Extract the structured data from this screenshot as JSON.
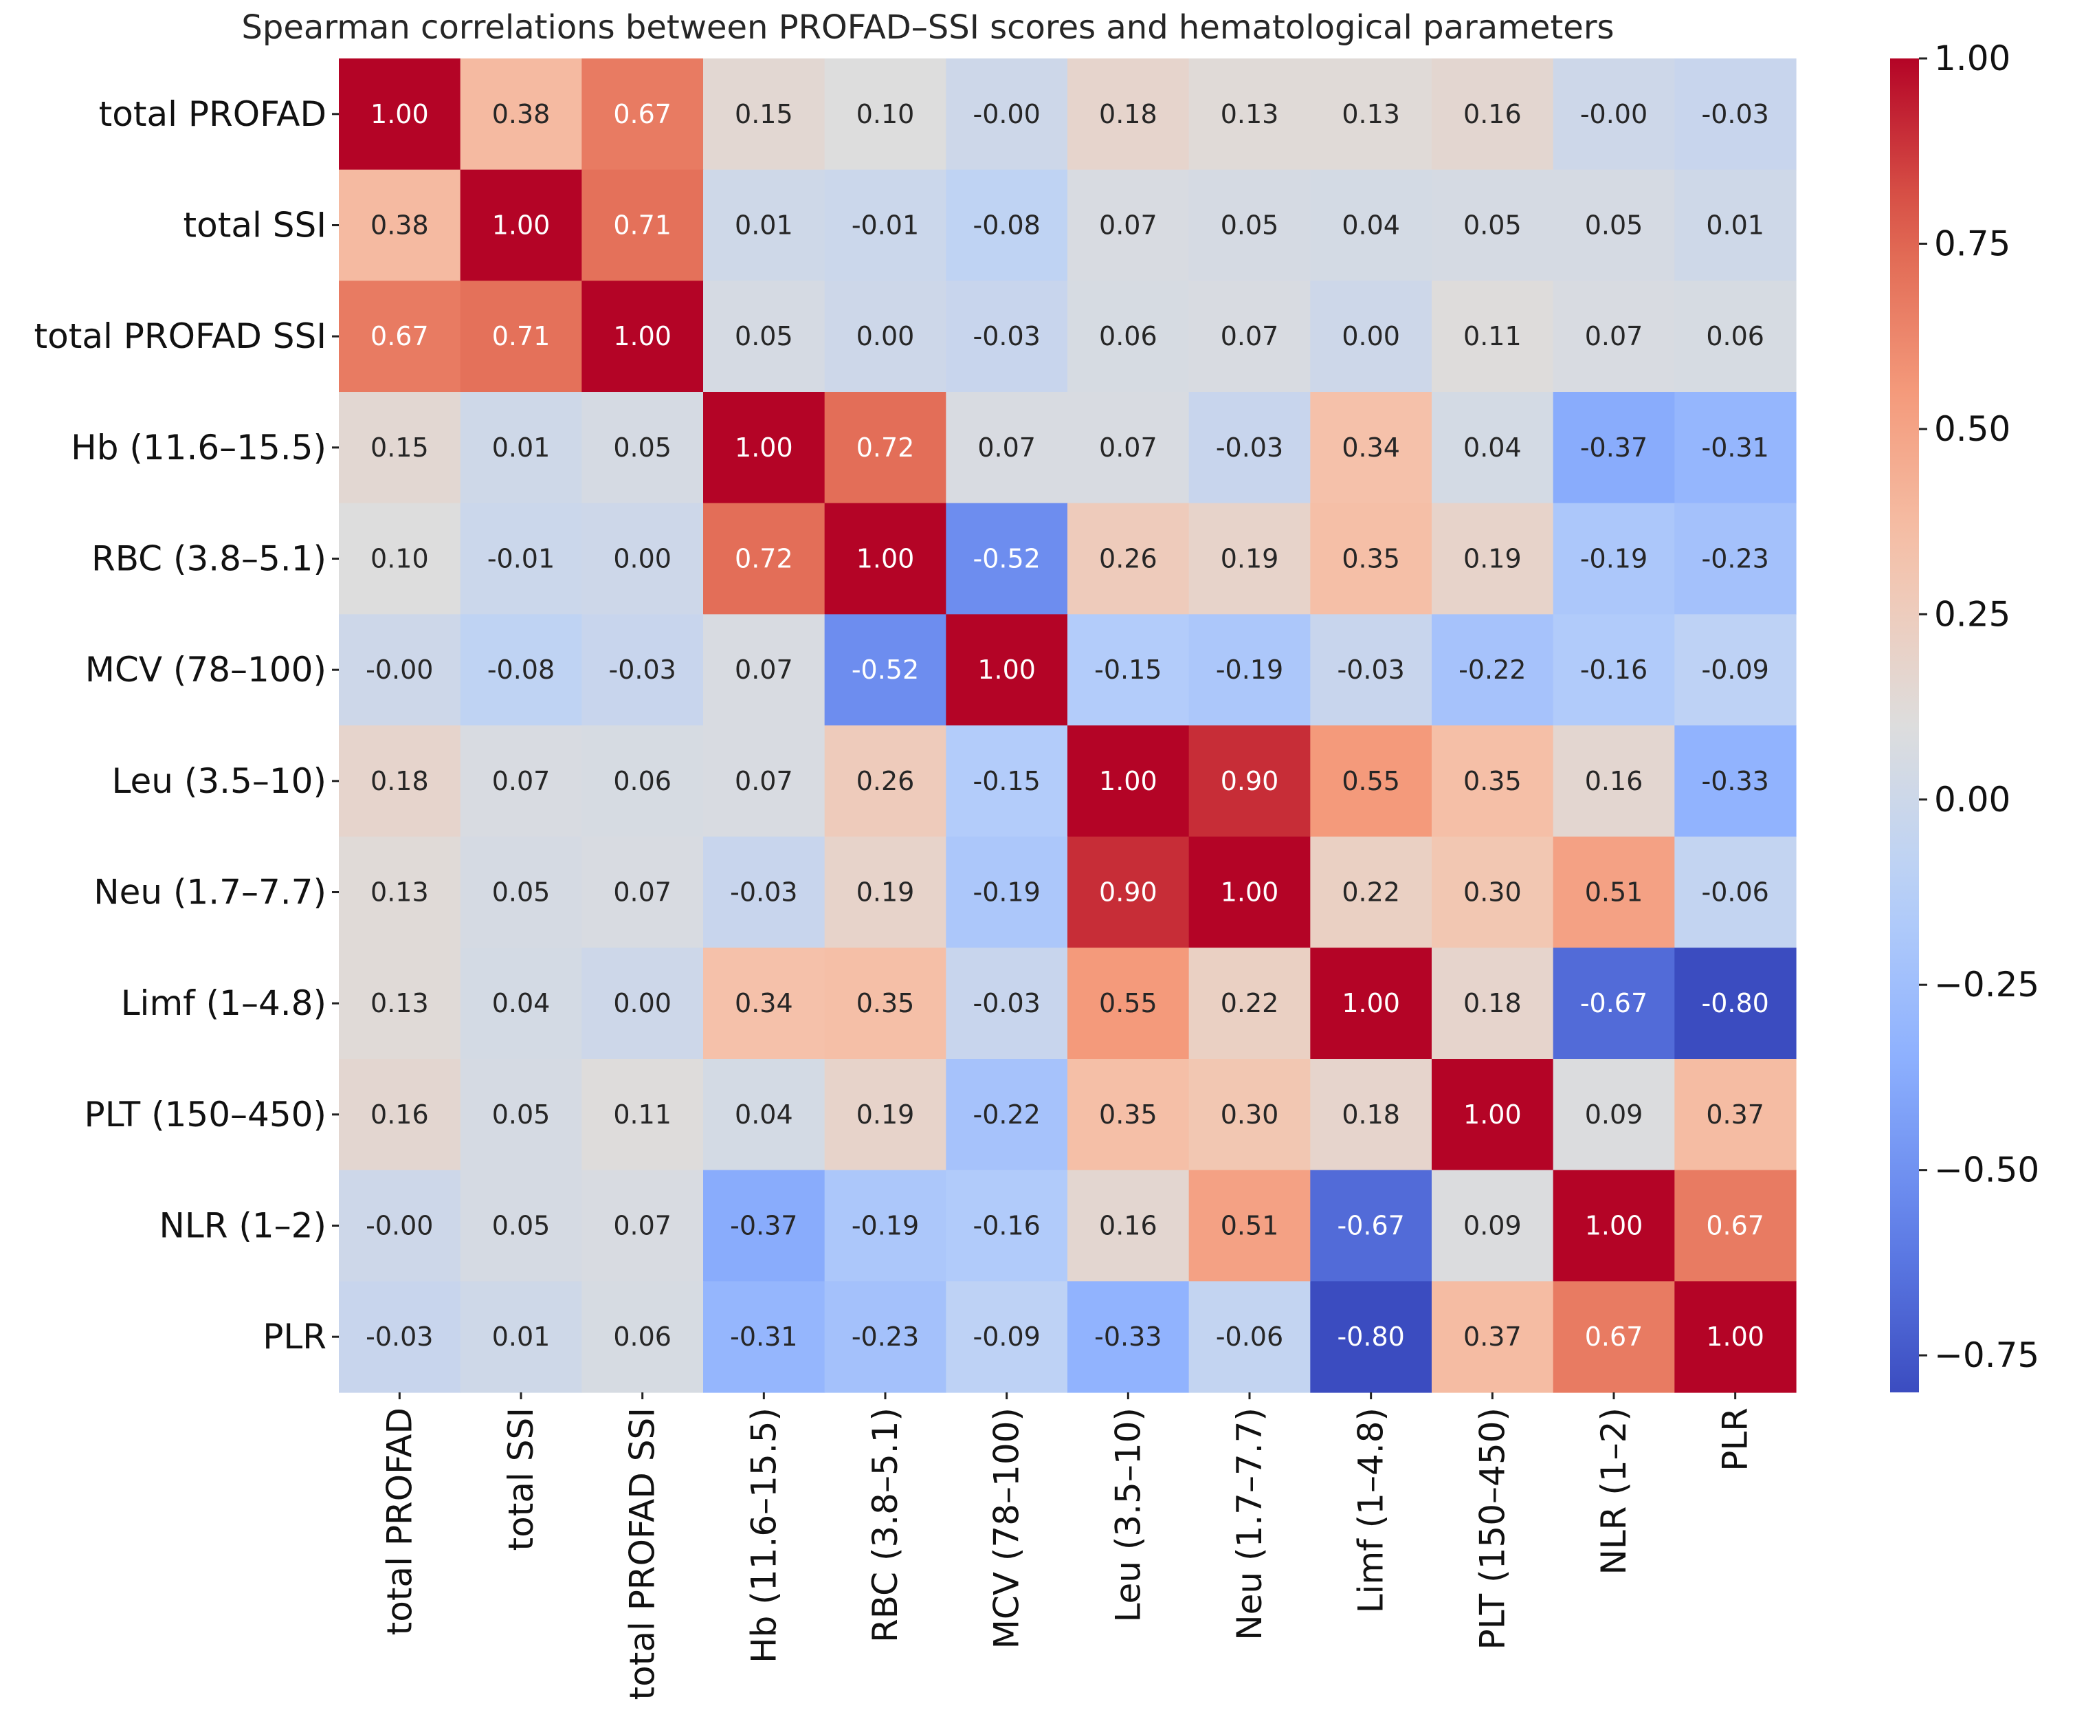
{
  "chart_data": {
    "type": "heatmap",
    "title": "Spearman correlations between PROFAD–SSI scores and hematological parameters",
    "row_labels": [
      "total PROFAD",
      "total SSI",
      "total PROFAD SSI",
      "Hb (11.6–15.5)",
      "RBC (3.8–5.1)",
      "MCV (78–100)",
      "Leu (3.5–10)",
      "Neu (1.7–7.7)",
      "Limf (1–4.8)",
      "PLT (150–450)",
      "NLR (1–2)",
      "PLR"
    ],
    "col_labels": [
      "total PROFAD",
      "total SSI",
      "total PROFAD SSI",
      "Hb (11.6–15.5)",
      "RBC (3.8–5.1)",
      "MCV (78–100)",
      "Leu (3.5–10)",
      "Neu (1.7–7.7)",
      "Limf (1–4.8)",
      "PLT (150–450)",
      "NLR (1–2)",
      "PLR"
    ],
    "values": [
      [
        1.0,
        0.38,
        0.67,
        0.15,
        0.1,
        -0.0,
        0.18,
        0.13,
        0.13,
        0.16,
        -0.0,
        -0.03
      ],
      [
        0.38,
        1.0,
        0.71,
        0.01,
        -0.01,
        -0.08,
        0.07,
        0.05,
        0.04,
        0.05,
        0.05,
        0.01
      ],
      [
        0.67,
        0.71,
        1.0,
        0.05,
        0.0,
        -0.03,
        0.06,
        0.07,
        0.0,
        0.11,
        0.07,
        0.06
      ],
      [
        0.15,
        0.01,
        0.05,
        1.0,
        0.72,
        0.07,
        0.07,
        -0.03,
        0.34,
        0.04,
        -0.37,
        -0.31
      ],
      [
        0.1,
        -0.01,
        0.0,
        0.72,
        1.0,
        -0.52,
        0.26,
        0.19,
        0.35,
        0.19,
        -0.19,
        -0.23
      ],
      [
        -0.0,
        -0.08,
        -0.03,
        0.07,
        -0.52,
        1.0,
        -0.15,
        -0.19,
        -0.03,
        -0.22,
        -0.16,
        -0.09
      ],
      [
        0.18,
        0.07,
        0.06,
        0.07,
        0.26,
        -0.15,
        1.0,
        0.9,
        0.55,
        0.35,
        0.16,
        -0.33
      ],
      [
        0.13,
        0.05,
        0.07,
        -0.03,
        0.19,
        -0.19,
        0.9,
        1.0,
        0.22,
        0.3,
        0.51,
        -0.06
      ],
      [
        0.13,
        0.04,
        0.0,
        0.34,
        0.35,
        -0.03,
        0.55,
        0.22,
        1.0,
        0.18,
        -0.67,
        -0.8
      ],
      [
        0.16,
        0.05,
        0.11,
        0.04,
        0.19,
        -0.22,
        0.35,
        0.3,
        0.18,
        1.0,
        0.09,
        0.37
      ],
      [
        -0.0,
        0.05,
        0.07,
        -0.37,
        -0.19,
        -0.16,
        0.16,
        0.51,
        -0.67,
        0.09,
        1.0,
        0.67
      ],
      [
        -0.03,
        0.01,
        0.06,
        -0.31,
        -0.23,
        -0.09,
        -0.33,
        -0.06,
        -0.8,
        0.37,
        0.67,
        1.0
      ]
    ],
    "cell_labels": [
      [
        "1.00",
        "0.38",
        "0.67",
        "0.15",
        "0.10",
        "-0.00",
        "0.18",
        "0.13",
        "0.13",
        "0.16",
        "-0.00",
        "-0.03"
      ],
      [
        "0.38",
        "1.00",
        "0.71",
        "0.01",
        "-0.01",
        "-0.08",
        "0.07",
        "0.05",
        "0.04",
        "0.05",
        "0.05",
        "0.01"
      ],
      [
        "0.67",
        "0.71",
        "1.00",
        "0.05",
        "0.00",
        "-0.03",
        "0.06",
        "0.07",
        "0.00",
        "0.11",
        "0.07",
        "0.06"
      ],
      [
        "0.15",
        "0.01",
        "0.05",
        "1.00",
        "0.72",
        "0.07",
        "0.07",
        "-0.03",
        "0.34",
        "0.04",
        "-0.37",
        "-0.31"
      ],
      [
        "0.10",
        "-0.01",
        "0.00",
        "0.72",
        "1.00",
        "-0.52",
        "0.26",
        "0.19",
        "0.35",
        "0.19",
        "-0.19",
        "-0.23"
      ],
      [
        "-0.00",
        "-0.08",
        "-0.03",
        "0.07",
        "-0.52",
        "1.00",
        "-0.15",
        "-0.19",
        "-0.03",
        "-0.22",
        "-0.16",
        "-0.09"
      ],
      [
        "0.18",
        "0.07",
        "0.06",
        "0.07",
        "0.26",
        "-0.15",
        "1.00",
        "0.90",
        "0.55",
        "0.35",
        "0.16",
        "-0.33"
      ],
      [
        "0.13",
        "0.05",
        "0.07",
        "-0.03",
        "0.19",
        "-0.19",
        "0.90",
        "1.00",
        "0.22",
        "0.30",
        "0.51",
        "-0.06"
      ],
      [
        "0.13",
        "0.04",
        "0.00",
        "0.34",
        "0.35",
        "-0.03",
        "0.55",
        "0.22",
        "1.00",
        "0.18",
        "-0.67",
        "-0.80"
      ],
      [
        "0.16",
        "0.05",
        "0.11",
        "0.04",
        "0.19",
        "-0.22",
        "0.35",
        "0.30",
        "0.18",
        "1.00",
        "0.09",
        "0.37"
      ],
      [
        "-0.00",
        "0.05",
        "0.07",
        "-0.37",
        "-0.19",
        "-0.16",
        "0.16",
        "0.51",
        "-0.67",
        "0.09",
        "1.00",
        "0.67"
      ],
      [
        "-0.03",
        "0.01",
        "0.06",
        "-0.31",
        "-0.23",
        "-0.09",
        "-0.33",
        "-0.06",
        "-0.80",
        "0.37",
        "0.67",
        "1.00"
      ]
    ],
    "colormap": "coolwarm",
    "vmin": -0.8,
    "vmax": 1.0,
    "colorbar_ticks": [
      1.0,
      0.75,
      0.5,
      0.25,
      0.0,
      -0.25,
      -0.5,
      -0.75
    ],
    "colorbar_tick_labels": [
      "1.00",
      "0.75",
      "0.50",
      "0.25",
      "0.00",
      "−0.25",
      "−0.50",
      "−0.75"
    ],
    "colorbar_position": "right"
  }
}
